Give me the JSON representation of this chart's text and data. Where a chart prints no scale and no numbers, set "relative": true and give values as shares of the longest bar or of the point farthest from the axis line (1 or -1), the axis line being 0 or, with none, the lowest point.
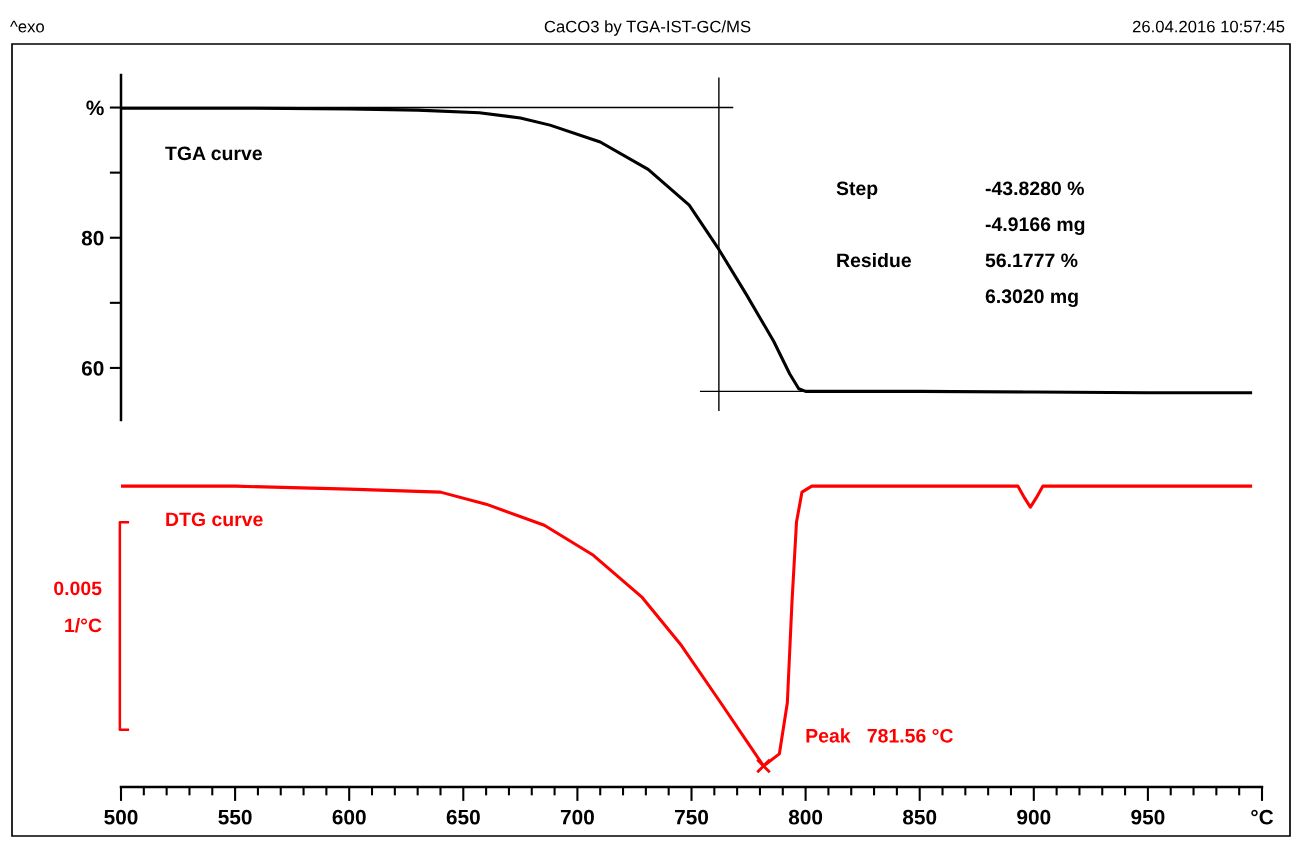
{
  "chart_data": [
    {
      "type": "line",
      "title": "CaCO3 by TGA-IST-GC/MS",
      "annotations": [
        "^exo",
        "26.04.2016 10:57:45",
        "Step",
        "-43.8280 %",
        "-4.9166 mg",
        "Residue",
        "56.1777 %",
        "6.3020 mg"
      ],
      "xlim": [
        500,
        1000
      ],
      "ylim": [
        52,
        105
      ],
      "yticks": [
        {
          "value": 100,
          "label": "%"
        },
        {
          "value": 90,
          "label": null
        },
        80,
        {
          "value": 70,
          "label": null
        },
        60
      ],
      "tick_labels": "y",
      "series": [
        {
          "name": "TGA curve",
          "color": "#000000",
          "x": [
            500,
            550,
            600,
            630,
            657,
            675,
            688,
            710,
            731,
            749,
            762,
            774,
            786,
            793,
            797,
            800,
            850,
            900,
            950,
            995
          ],
          "values": [
            99.9,
            99.9,
            99.8,
            99.6,
            99.2,
            98.4,
            97.3,
            94.7,
            90.5,
            85.0,
            78.2,
            71.3,
            64.1,
            59.1,
            56.8,
            56.4,
            56.4,
            56.3,
            56.2,
            56.2
          ]
        },
        {
          "color": "#000000",
          "x": [
            500,
            768
          ],
          "values": [
            100,
            100
          ]
        },
        {
          "color": "#000000",
          "x": [
            754,
            895
          ],
          "values": [
            56.4,
            56.4
          ]
        },
        {
          "color": "#000000",
          "x": [
            762,
            762
          ],
          "values": [
            104.5,
            53.5
          ]
        }
      ]
    },
    {
      "type": "line",
      "relative": true,
      "annotations": [
        "0.005",
        "1/°C",
        {
          "text": "Peak   781.56 °C",
          "x": 781.56,
          "y": 0.07
        }
      ],
      "xlim": [
        500,
        1000
      ],
      "xticks": [
        500,
        {
          "value": 510,
          "label": null
        },
        {
          "value": 520,
          "label": null
        },
        {
          "value": 530,
          "label": null
        },
        {
          "value": 540,
          "label": null
        },
        550,
        {
          "value": 560,
          "label": null
        },
        {
          "value": 570,
          "label": null
        },
        {
          "value": 580,
          "label": null
        },
        {
          "value": 590,
          "label": null
        },
        600,
        {
          "value": 610,
          "label": null
        },
        {
          "value": 620,
          "label": null
        },
        {
          "value": 630,
          "label": null
        },
        {
          "value": 640,
          "label": null
        },
        650,
        {
          "value": 660,
          "label": null
        },
        {
          "value": 670,
          "label": null
        },
        {
          "value": 680,
          "label": null
        },
        {
          "value": 690,
          "label": null
        },
        700,
        {
          "value": 710,
          "label": null
        },
        {
          "value": 720,
          "label": null
        },
        {
          "value": 730,
          "label": null
        },
        {
          "value": 740,
          "label": null
        },
        750,
        {
          "value": 760,
          "label": null
        },
        {
          "value": 770,
          "label": null
        },
        {
          "value": 780,
          "label": null
        },
        {
          "value": 790,
          "label": null
        },
        800,
        {
          "value": 810,
          "label": null
        },
        {
          "value": 820,
          "label": null
        },
        {
          "value": 830,
          "label": null
        },
        {
          "value": 840,
          "label": null
        },
        850,
        {
          "value": 860,
          "label": null
        },
        {
          "value": 870,
          "label": null
        },
        {
          "value": 880,
          "label": null
        },
        {
          "value": 890,
          "label": null
        },
        900,
        {
          "value": 910,
          "label": null
        },
        {
          "value": 920,
          "label": null
        },
        {
          "value": 930,
          "label": null
        },
        {
          "value": 940,
          "label": null
        },
        950,
        {
          "value": 960,
          "label": null
        },
        {
          "value": 970,
          "label": null
        },
        {
          "value": 980,
          "label": null
        },
        {
          "value": 990,
          "label": null
        },
        {
          "value": 1000,
          "label": "°C"
        }
      ],
      "series": [
        {
          "name": "DTG curve",
          "color": "#ff0000",
          "x": [
            500,
            550,
            600,
            640,
            660,
            685.5,
            707,
            728.4,
            745.6,
            762.8,
            774.4,
            781.56,
            788.5,
            792,
            794,
            796,
            798.4,
            802.7,
            850,
            893,
            896,
            898.5,
            901,
            904,
            950,
            995
          ],
          "values": [
            1,
            1,
            0.99,
            0.98,
            0.94,
            0.87,
            0.77,
            0.63,
            0.47,
            0.28,
            0.15,
            0.07,
            0.11,
            0.28,
            0.61,
            0.88,
            0.98,
            1,
            1,
            1,
            0.96,
            0.93,
            0.96,
            1,
            1,
            1
          ]
        }
      ]
    }
  ]
}
